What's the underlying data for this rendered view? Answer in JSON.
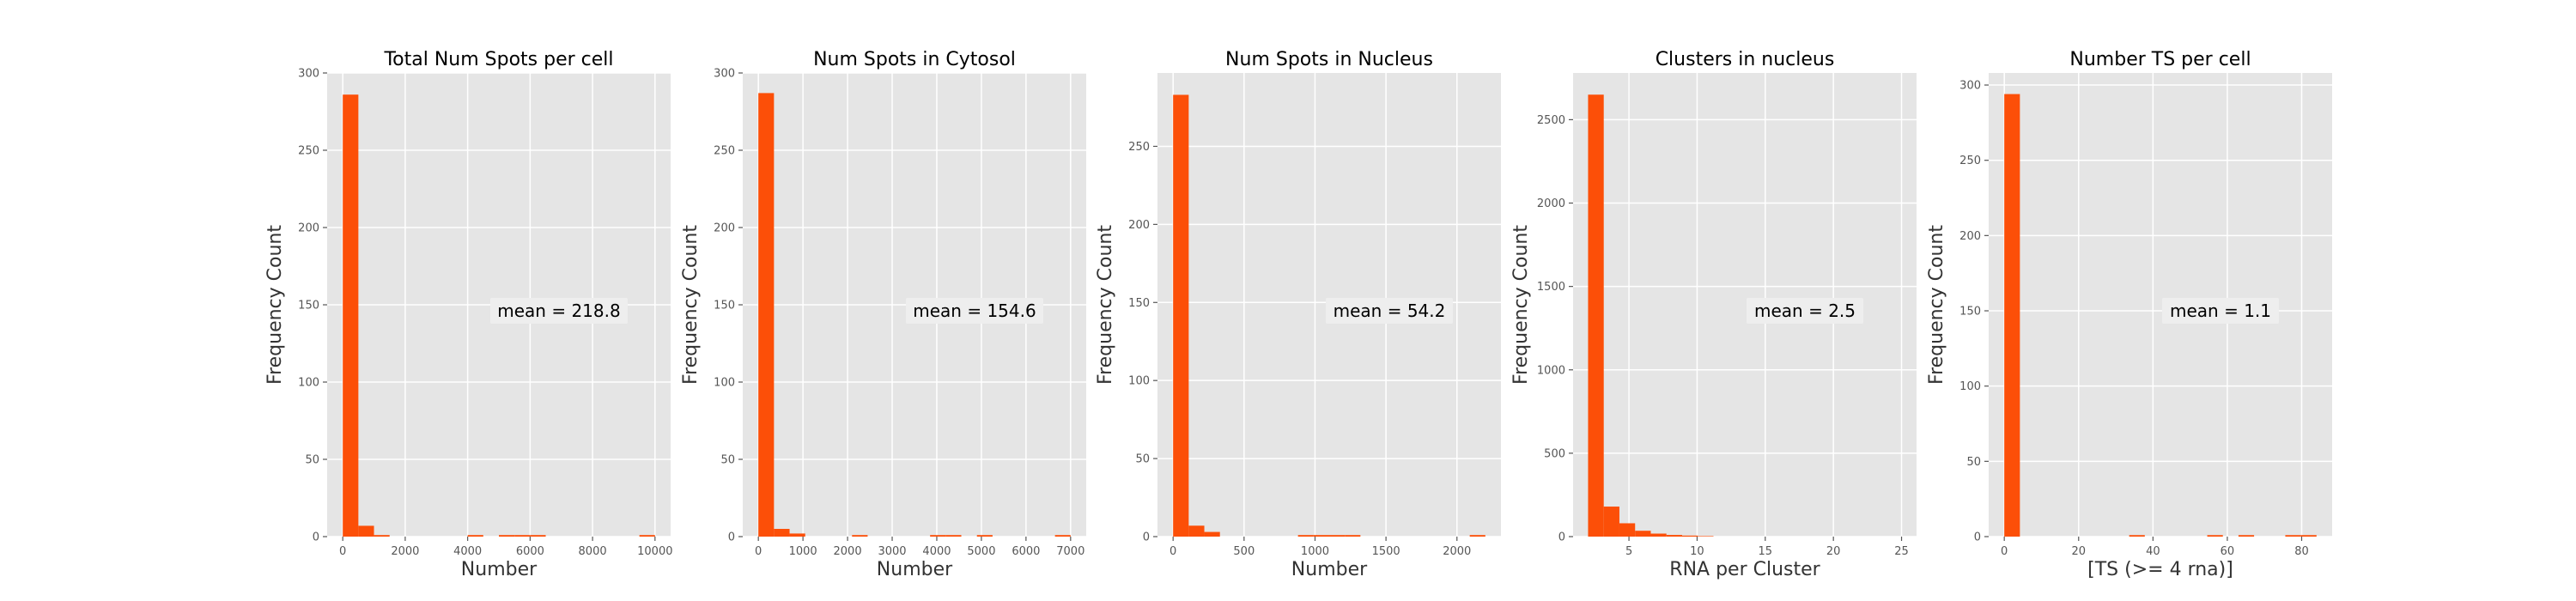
{
  "figure": {
    "bar_color": "#fc4f08",
    "panel_background": "#e5e5e5",
    "grid_color": "#ffffff",
    "tick_color": "#555555",
    "text_color": "#000000"
  },
  "chart_data": [
    {
      "type": "bar",
      "title": "Total Num Spots per cell",
      "xlabel": "Number",
      "ylabel": "Frequency Count",
      "annotation": "mean = 218.8",
      "xlim": [
        -500,
        10500
      ],
      "ylim": [
        0,
        300
      ],
      "xticks": [
        0,
        2000,
        4000,
        6000,
        8000,
        10000
      ],
      "yticks": [
        0,
        50,
        100,
        150,
        200,
        250,
        300
      ],
      "bin_width": 500,
      "bins": [
        {
          "x": 0,
          "count": 286
        },
        {
          "x": 500,
          "count": 7
        },
        {
          "x": 1000,
          "count": 1
        },
        {
          "x": 4000,
          "count": 1
        },
        {
          "x": 5000,
          "count": 1
        },
        {
          "x": 5500,
          "count": 1
        },
        {
          "x": 6000,
          "count": 1
        },
        {
          "x": 9500,
          "count": 1
        }
      ]
    },
    {
      "type": "bar",
      "title": "Num Spots in Cytosol",
      "xlabel": "Number",
      "ylabel": "Frequency Count",
      "annotation": "mean = 154.6",
      "xlim": [
        -350,
        7350
      ],
      "ylim": [
        0,
        300
      ],
      "xticks": [
        0,
        1000,
        2000,
        3000,
        4000,
        5000,
        6000,
        7000
      ],
      "yticks": [
        0,
        50,
        100,
        150,
        200,
        250,
        300
      ],
      "bin_width": 350,
      "bins": [
        {
          "x": 0,
          "count": 287
        },
        {
          "x": 350,
          "count": 5
        },
        {
          "x": 700,
          "count": 2
        },
        {
          "x": 2100,
          "count": 1
        },
        {
          "x": 3850,
          "count": 1
        },
        {
          "x": 4200,
          "count": 1
        },
        {
          "x": 4900,
          "count": 1
        },
        {
          "x": 6650,
          "count": 1
        }
      ]
    },
    {
      "type": "bar",
      "title": "Num Spots in Nucleus",
      "xlabel": "Number",
      "ylabel": "Frequency Count",
      "annotation": "mean = 54.2",
      "xlim": [
        -110,
        2310
      ],
      "ylim": [
        0,
        297
      ],
      "xticks": [
        0,
        500,
        1000,
        1500,
        2000
      ],
      "yticks": [
        0,
        50,
        100,
        150,
        200,
        250
      ],
      "bin_width": 110,
      "bins": [
        {
          "x": 0,
          "count": 283
        },
        {
          "x": 110,
          "count": 7
        },
        {
          "x": 220,
          "count": 3
        },
        {
          "x": 880,
          "count": 1
        },
        {
          "x": 990,
          "count": 1
        },
        {
          "x": 1100,
          "count": 1
        },
        {
          "x": 1210,
          "count": 1
        },
        {
          "x": 2090,
          "count": 1
        }
      ]
    },
    {
      "type": "bar",
      "title": "Clusters in nucleus",
      "xlabel": "RNA per Cluster",
      "ylabel": "Frequency Count",
      "annotation": "mean = 2.5",
      "xlim": [
        0.9,
        26.1
      ],
      "ylim": [
        0,
        2780
      ],
      "xticks": [
        5,
        10,
        15,
        20,
        25
      ],
      "yticks": [
        0,
        500,
        1000,
        1500,
        2000,
        2500
      ],
      "bin_width": 1.15,
      "bins": [
        {
          "x": 2,
          "count": 2650
        },
        {
          "x": 3.15,
          "count": 180
        },
        {
          "x": 4.3,
          "count": 80
        },
        {
          "x": 5.45,
          "count": 35
        },
        {
          "x": 6.6,
          "count": 18
        },
        {
          "x": 7.75,
          "count": 10
        },
        {
          "x": 8.9,
          "count": 6
        },
        {
          "x": 10.05,
          "count": 3
        }
      ]
    },
    {
      "type": "bar",
      "title": "Number TS per cell",
      "xlabel": "[TS (>= 4 rna)]",
      "ylabel": "Frequency Count",
      "annotation": "mean = 1.1",
      "xlim": [
        -4.2,
        88.2
      ],
      "ylim": [
        0,
        308
      ],
      "xticks": [
        0,
        20,
        40,
        60,
        80
      ],
      "yticks": [
        0,
        50,
        100,
        150,
        200,
        250,
        300
      ],
      "bin_width": 4.2,
      "bins": [
        {
          "x": 0,
          "count": 294
        },
        {
          "x": 33.6,
          "count": 1
        },
        {
          "x": 54.6,
          "count": 1
        },
        {
          "x": 63,
          "count": 1
        },
        {
          "x": 75.6,
          "count": 1
        },
        {
          "x": 79.8,
          "count": 1
        }
      ]
    }
  ]
}
